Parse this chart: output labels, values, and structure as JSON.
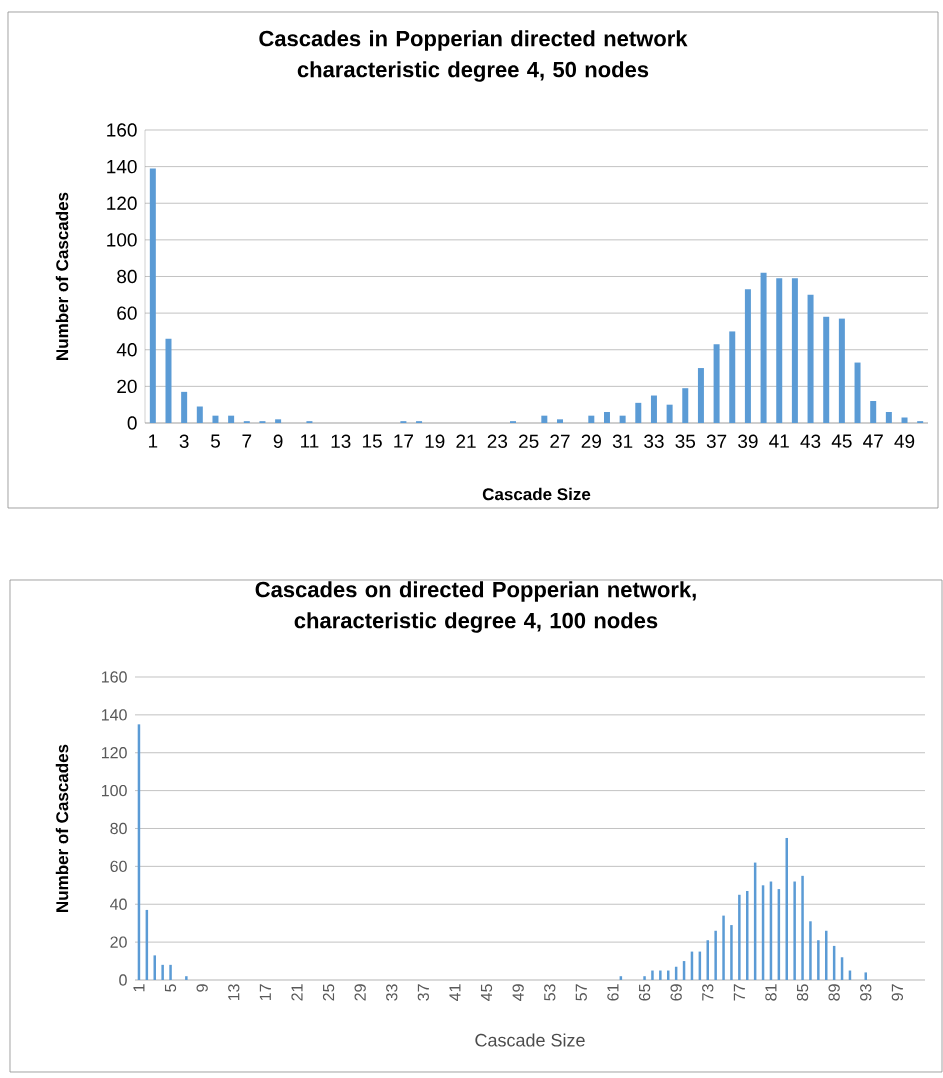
{
  "chart_data": [
    {
      "type": "bar",
      "title": "Cascades in Popperian directed network characteristic degree 4, 50 nodes",
      "xlabel": "Cascade Size",
      "ylabel": "Number of Cascades",
      "categories": [
        "1",
        null,
        "3",
        null,
        "5",
        null,
        "7",
        null,
        "9",
        null,
        "11",
        null,
        "13",
        null,
        "15",
        null,
        "17",
        null,
        "19",
        null,
        "21",
        null,
        "23",
        null,
        "25",
        null,
        "27",
        null,
        "29",
        null,
        "31",
        null,
        "33",
        null,
        "35",
        null,
        "37",
        null,
        "39",
        null,
        "41",
        null,
        "43",
        null,
        "45",
        null,
        "47",
        null,
        "49",
        null
      ],
      "values": [
        139,
        46,
        17,
        9,
        4,
        4,
        1,
        1,
        2,
        0,
        1,
        0,
        0,
        0,
        0,
        0,
        1,
        1,
        0,
        0,
        0,
        0,
        0,
        1,
        0,
        4,
        2,
        0,
        4,
        6,
        4,
        11,
        15,
        10,
        19,
        30,
        43,
        50,
        73,
        82,
        79,
        79,
        70,
        58,
        57,
        33,
        12,
        6,
        3,
        1
      ],
      "color": "#5b9bd5",
      "ylim": [
        0,
        160
      ],
      "yticks": [
        0,
        20,
        40,
        60,
        80,
        100,
        120,
        140,
        160
      ],
      "grid": "y"
    },
    {
      "type": "bar",
      "title": "Cascades on directed Popperian network, characteristic degree 4, 100 nodes",
      "xlabel": "Cascade Size",
      "ylabel": "Number of Cascades",
      "categories": [
        "1",
        null,
        null,
        null,
        "5",
        null,
        null,
        null,
        "9",
        null,
        null,
        null,
        "13",
        null,
        null,
        null,
        "17",
        null,
        null,
        null,
        "21",
        null,
        null,
        null,
        "25",
        null,
        null,
        null,
        "29",
        null,
        null,
        null,
        "33",
        null,
        null,
        null,
        "37",
        null,
        null,
        null,
        "41",
        null,
        null,
        null,
        "45",
        null,
        null,
        null,
        "49",
        null,
        null,
        null,
        "53",
        null,
        null,
        null,
        "57",
        null,
        null,
        null,
        "61",
        null,
        null,
        null,
        "65",
        null,
        null,
        null,
        "69",
        null,
        null,
        null,
        "73",
        null,
        null,
        null,
        "77",
        null,
        null,
        null,
        "81",
        null,
        null,
        null,
        "85",
        null,
        null,
        null,
        "89",
        null,
        null,
        null,
        "93",
        null,
        null,
        null,
        "97",
        null,
        null,
        null
      ],
      "values": [
        135,
        37,
        13,
        8,
        8,
        0,
        2,
        0,
        0,
        0,
        0,
        0,
        0,
        0,
        0,
        0,
        0,
        0,
        0,
        0,
        0,
        0,
        0,
        0,
        0,
        0,
        0,
        0,
        0,
        0,
        0,
        0,
        0,
        0,
        0,
        0,
        0,
        0,
        0,
        0,
        0,
        0,
        0,
        0,
        0,
        0,
        0,
        0,
        0,
        0,
        0,
        0,
        0,
        0,
        0,
        0,
        0,
        0,
        0,
        0,
        0,
        2,
        0,
        0,
        2,
        5,
        5,
        5,
        7,
        10,
        15,
        15,
        21,
        26,
        34,
        29,
        45,
        47,
        62,
        50,
        52,
        48,
        75,
        52,
        55,
        31,
        21,
        26,
        18,
        12,
        5,
        0,
        4,
        0,
        0,
        0,
        0,
        0,
        0,
        0
      ],
      "color": "#5b9bd5",
      "ylim": [
        0,
        160
      ],
      "yticks": [
        0,
        20,
        40,
        60,
        80,
        100,
        120,
        140,
        160
      ],
      "grid": "y"
    }
  ]
}
